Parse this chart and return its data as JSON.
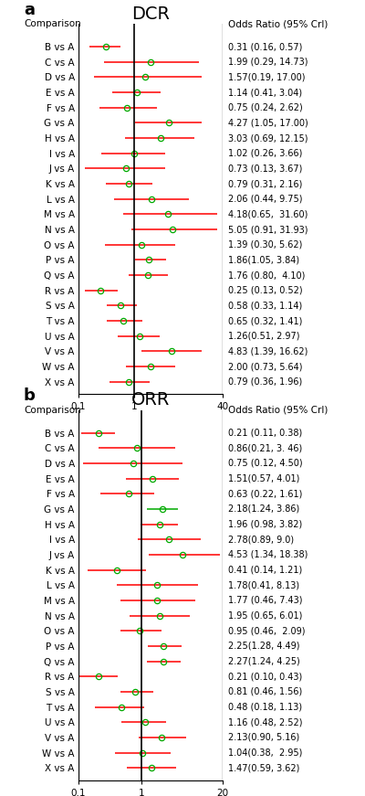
{
  "dcr": {
    "title": "DCR",
    "panel_label": "a",
    "xmin": 0.1,
    "xmax": 40,
    "xticks": [
      0.1,
      1,
      40
    ],
    "xticklabels": [
      "0.1",
      "1",
      "40"
    ],
    "comparisons": [
      "B vs A",
      "C vs A",
      "D vs A",
      "E vs A",
      "F vs A",
      "G vs A",
      "H vs A",
      "I vs A",
      "J vs A",
      "K vs A",
      "L vs A",
      "M vs A",
      "N vs A",
      "O vs A",
      "P vs A",
      "Q vs A",
      "R vs A",
      "S vs A",
      "T vs A",
      "U vs A",
      "V vs A",
      "W vs A",
      "X vs A"
    ],
    "or": [
      0.31,
      1.99,
      1.57,
      1.14,
      0.75,
      4.27,
      3.03,
      1.02,
      0.73,
      0.79,
      2.06,
      4.18,
      5.05,
      1.39,
      1.86,
      1.76,
      0.25,
      0.58,
      0.65,
      1.26,
      4.83,
      2.0,
      0.79
    ],
    "lo": [
      0.16,
      0.29,
      0.19,
      0.41,
      0.24,
      1.05,
      0.69,
      0.26,
      0.13,
      0.31,
      0.44,
      0.65,
      0.91,
      0.3,
      1.05,
      0.8,
      0.13,
      0.33,
      0.32,
      0.51,
      1.39,
      0.73,
      0.36
    ],
    "hi": [
      0.57,
      14.73,
      17.0,
      3.04,
      2.62,
      17.0,
      12.15,
      3.66,
      3.67,
      2.16,
      9.75,
      31.6,
      31.93,
      5.62,
      3.84,
      4.1,
      0.52,
      1.14,
      1.41,
      2.97,
      16.62,
      5.64,
      1.96
    ],
    "labels": [
      "0.31 (0.16, 0.57)",
      "1.99 (0.29, 14.73)",
      "1.57(0.19, 17.00)",
      "1.14 (0.41, 3.04)",
      "0.75 (0.24, 2.62)",
      "4.27 (1.05, 17.00)",
      "3.03 (0.69, 12.15)",
      "1.02 (0.26, 3.66)",
      "0.73 (0.13, 3.67)",
      "0.79 (0.31, 2.16)",
      "2.06 (0.44, 9.75)",
      "4.18(0.65,  31.60)",
      "5.05 (0.91, 31.93)",
      "1.39 (0.30, 5.62)",
      "1.86(1.05, 3.84)",
      "1.76 (0.80,  4.10)",
      "0.25 (0.13, 0.52)",
      "0.58 (0.33, 1.14)",
      "0.65 (0.32, 1.41)",
      "1.26(0.51, 2.97)",
      "4.83 (1.39, 16.62)",
      "2.00 (0.73, 5.64)",
      "0.79 (0.36, 1.96)"
    ],
    "g_color_idx": null
  },
  "orr": {
    "title": "ORR",
    "panel_label": "b",
    "xmin": 0.1,
    "xmax": 20,
    "xticks": [
      0.1,
      1,
      20
    ],
    "xticklabels": [
      "0.1",
      "1",
      "20"
    ],
    "comparisons": [
      "B vs A",
      "C vs A",
      "D vs A",
      "E vs A",
      "F vs A",
      "G vs A",
      "H vs A",
      "I vs A",
      "J vs A",
      "K vs A",
      "L vs A",
      "M vs A",
      "N vs A",
      "O vs A",
      "P vs A",
      "Q vs A",
      "R vs A",
      "S vs A",
      "T vs A",
      "U vs A",
      "V vs A",
      "W vs A",
      "X vs A"
    ],
    "or": [
      0.21,
      0.86,
      0.75,
      1.51,
      0.63,
      2.18,
      1.96,
      2.78,
      4.53,
      0.41,
      1.78,
      1.77,
      1.95,
      0.95,
      2.25,
      2.27,
      0.21,
      0.81,
      0.48,
      1.16,
      2.13,
      1.04,
      1.47
    ],
    "lo": [
      0.11,
      0.21,
      0.12,
      0.57,
      0.22,
      1.24,
      0.98,
      0.89,
      1.34,
      0.14,
      0.41,
      0.46,
      0.65,
      0.46,
      1.28,
      1.24,
      0.1,
      0.46,
      0.18,
      0.48,
      0.9,
      0.38,
      0.59
    ],
    "hi": [
      0.38,
      3.46,
      4.5,
      4.01,
      1.61,
      3.86,
      3.82,
      9.0,
      18.38,
      1.21,
      8.13,
      7.43,
      6.01,
      2.09,
      4.49,
      4.25,
      0.43,
      1.56,
      1.13,
      2.52,
      5.16,
      2.95,
      3.62
    ],
    "labels": [
      "0.21 (0.11, 0.38)",
      "0.86(0.21, 3. 46)",
      "0.75 (0.12, 4.50)",
      "1.51(0.57, 4.01)",
      "0.63 (0.22, 1.61)",
      "2.18(1.24, 3.86)",
      "1.96 (0.98, 3.82)",
      "2.78(0.89, 9.0)",
      "4.53 (1.34, 18.38)",
      "0.41 (0.14, 1.21)",
      "1.78(0.41, 8.13)",
      "1.77 (0.46, 7.43)",
      "1.95 (0.65, 6.01)",
      "0.95 (0.46,  2.09)",
      "2.25(1.28, 4.49)",
      "2.27(1.24, 4.25)",
      "0.21 (0.10, 0.43)",
      "0.81 (0.46, 1.56)",
      "0.48 (0.18, 1.13)",
      "1.16 (0.48, 2.52)",
      "2.13(0.90, 5.16)",
      "1.04(0.38,  2.95)",
      "1.47(0.59, 3.62)"
    ],
    "g_color_idx": 5
  },
  "line_color": "#FF0000",
  "marker_color": "#00AA00",
  "marker_size": 4.5,
  "line_width": 1.1,
  "label_fontsize": 7.5,
  "tick_fontsize": 7.5,
  "title_fontsize": 14,
  "panel_label_fontsize": 13
}
